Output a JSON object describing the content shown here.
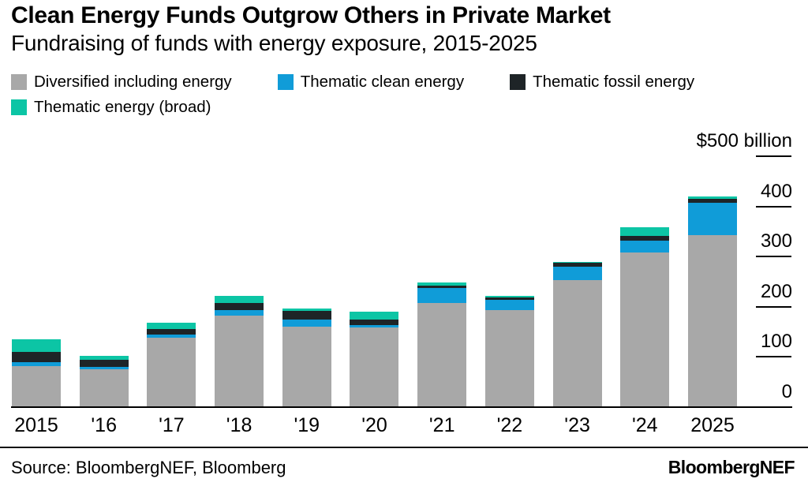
{
  "header": {
    "title": "Clean Energy Funds Outgrow Others in Private Market",
    "subtitle": "Fundraising of funds with energy exposure, 2015-2025"
  },
  "colors": {
    "diversified": "#a8a8a8",
    "clean": "#109cd8",
    "fossil": "#1e2427",
    "broad": "#0cc5a5",
    "axis": "#000000",
    "background": "#ffffff"
  },
  "legend": {
    "items": [
      {
        "label": "Diversified including energy",
        "color_key": "diversified"
      },
      {
        "label": "Thematic clean energy",
        "color_key": "clean"
      },
      {
        "label": "Thematic fossil energy",
        "color_key": "fossil"
      },
      {
        "label": "Thematic energy (broad)",
        "color_key": "broad"
      }
    ]
  },
  "y_axis": {
    "unit_label": "$500 billion",
    "ticks": [
      {
        "value": 500,
        "label": "$500 billion",
        "tick": true
      },
      {
        "value": 400,
        "label": "400",
        "tick": true
      },
      {
        "value": 300,
        "label": "300",
        "tick": true
      },
      {
        "value": 200,
        "label": "200",
        "tick": true
      },
      {
        "value": 100,
        "label": "100",
        "tick": true
      },
      {
        "value": 0,
        "label": "0",
        "tick": false
      }
    ]
  },
  "chart_data": {
    "type": "bar",
    "stacked": true,
    "title": "Clean Energy Funds Outgrow Others in Private Market",
    "subtitle": "Fundraising of funds with energy exposure, 2015-2025",
    "unit": "$ billion",
    "ylim": [
      0,
      500
    ],
    "grid": false,
    "legend_position": "top",
    "categories": [
      "2015",
      "'16",
      "'17",
      "'18",
      "'19",
      "'20",
      "'21",
      "'22",
      "'23",
      "'24",
      "2025"
    ],
    "series": [
      {
        "name": "Diversified including energy",
        "color_key": "diversified",
        "values": [
          82,
          75,
          139,
          183,
          160,
          159,
          207,
          193,
          253,
          309,
          343
        ]
      },
      {
        "name": "Thematic clean energy",
        "color_key": "clean",
        "values": [
          8,
          6,
          6,
          10,
          14,
          4,
          31,
          21,
          27,
          23,
          64
        ]
      },
      {
        "name": "Thematic fossil energy",
        "color_key": "fossil",
        "values": [
          20,
          14,
          11,
          14,
          18,
          11,
          4,
          4,
          7,
          9,
          9
        ]
      },
      {
        "name": "Thematic energy (broad)",
        "color_key": "broad",
        "values": [
          26,
          8,
          13,
          14,
          5,
          16,
          6,
          4,
          3,
          17,
          4
        ]
      }
    ],
    "totals": [
      136,
      103,
      169,
      221,
      197,
      190,
      248,
      222,
      290,
      358,
      420
    ]
  },
  "footer": {
    "source": "Source: BloombergNEF, Bloomberg",
    "brand": "BloombergNEF"
  }
}
